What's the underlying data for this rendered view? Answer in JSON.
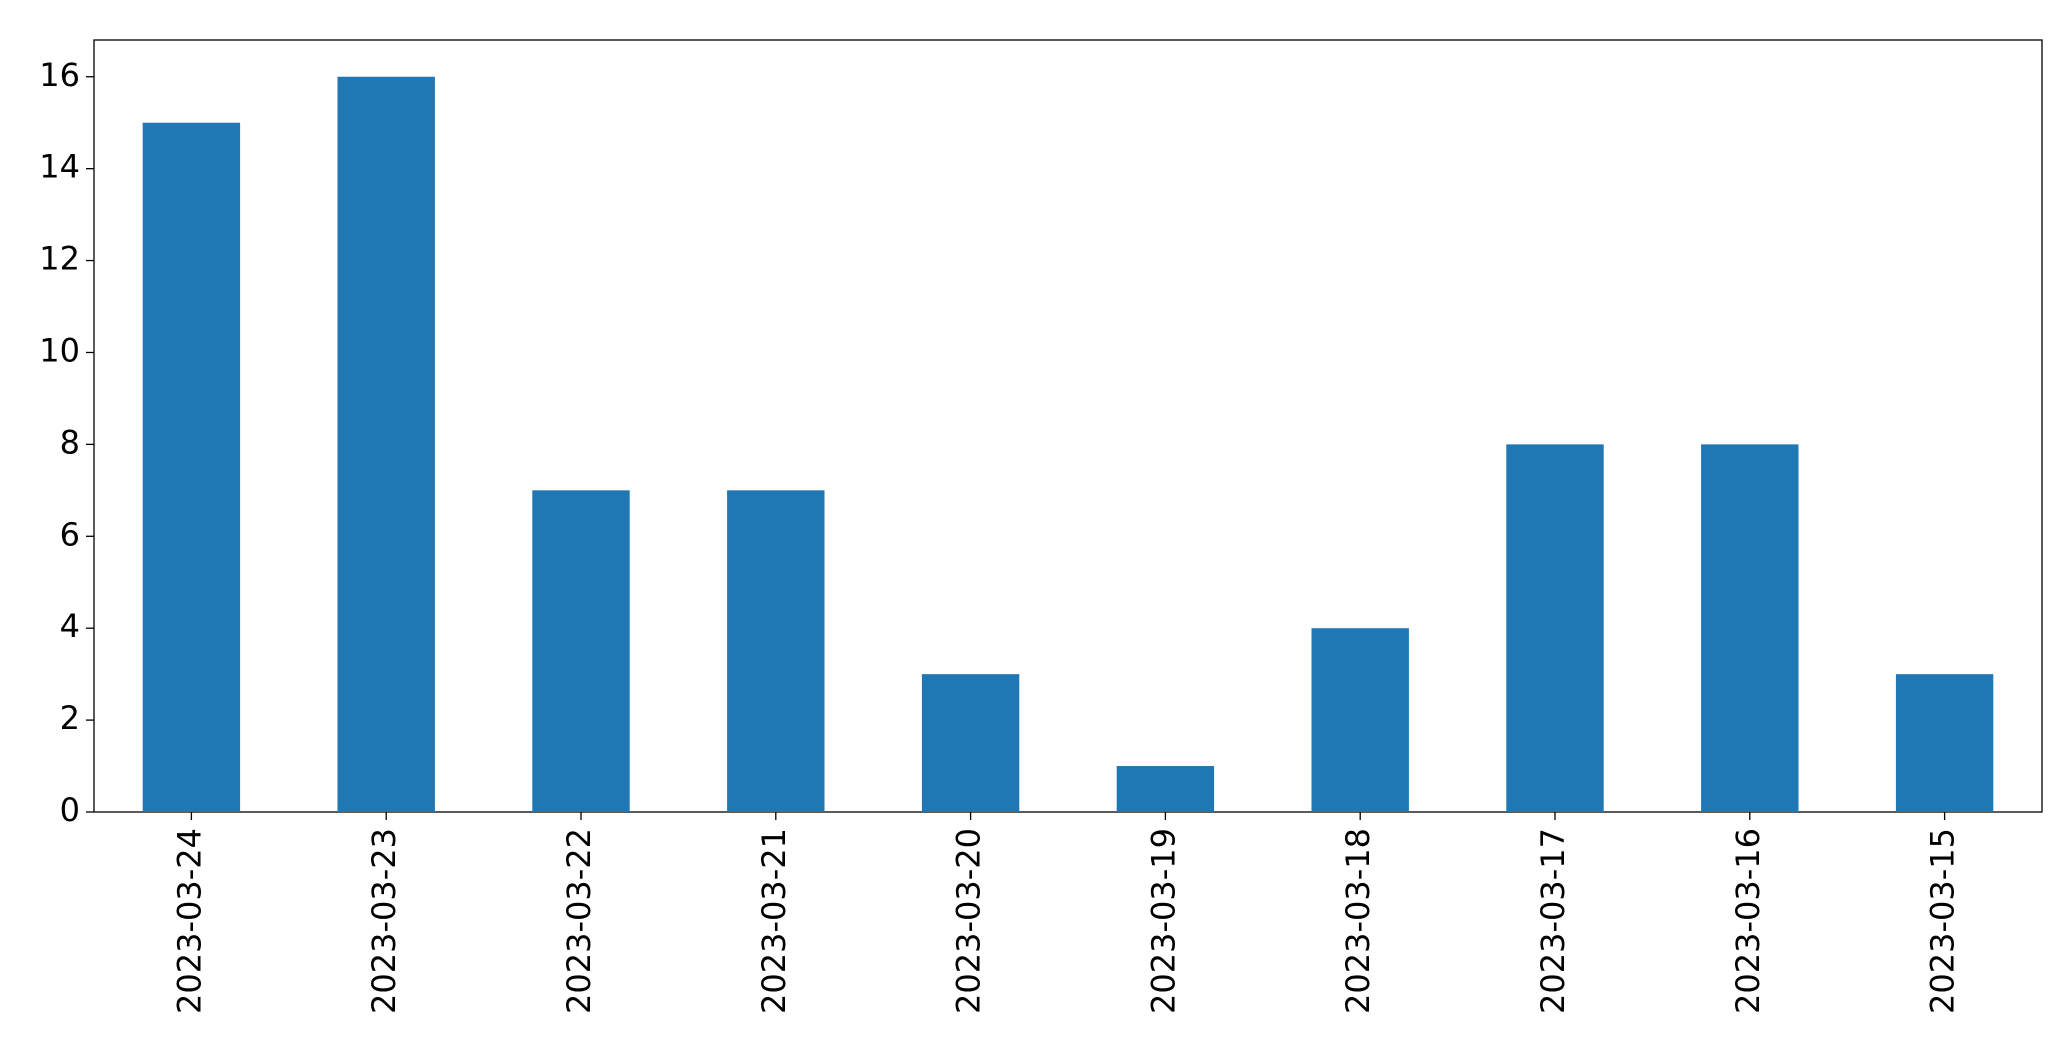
{
  "chart_data": {
    "type": "bar",
    "categories": [
      "2023-03-24",
      "2023-03-23",
      "2023-03-22",
      "2023-03-21",
      "2023-03-20",
      "2023-03-19",
      "2023-03-18",
      "2023-03-17",
      "2023-03-16",
      "2023-03-15"
    ],
    "values": [
      15,
      16,
      7,
      7,
      3,
      1,
      4,
      8,
      8,
      3
    ],
    "color": "#1f77b4",
    "ylim": [
      0,
      16.8
    ],
    "yticks": [
      0,
      2,
      4,
      6,
      8,
      10,
      12,
      14,
      16
    ],
    "grid": false
  }
}
